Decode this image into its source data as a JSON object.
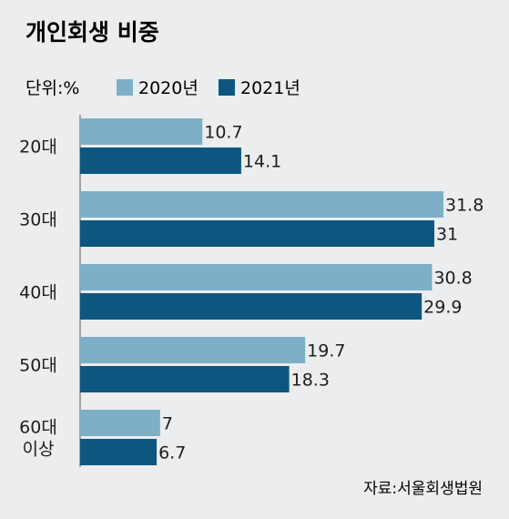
{
  "title": "개인회생 비중",
  "unit_label": "단위:%",
  "source": "자료:서울회생법원",
  "colors": {
    "series_2020": "#7db0c6",
    "series_2021": "#0d567f",
    "axis": "#555555",
    "background": "#ebedee"
  },
  "chart_data": {
    "type": "bar",
    "orientation": "horizontal",
    "title": "개인회생 비중",
    "unit": "단위:%",
    "categories": [
      "20대",
      "30대",
      "40대",
      "50대",
      "60대 이상"
    ],
    "series": [
      {
        "name": "2020년",
        "values": [
          10.7,
          31.8,
          30.8,
          19.7,
          7
        ]
      },
      {
        "name": "2021년",
        "values": [
          14.1,
          31,
          29.9,
          18.3,
          6.7
        ]
      }
    ],
    "value_labels": [
      [
        "10.7",
        "31.8",
        "30.8",
        "19.7",
        "7"
      ],
      [
        "14.1",
        "31",
        "29.9",
        "18.3",
        "6.7"
      ]
    ],
    "xlim": [
      0,
      31.8
    ],
    "grid": false,
    "legend_position": "top-left"
  }
}
